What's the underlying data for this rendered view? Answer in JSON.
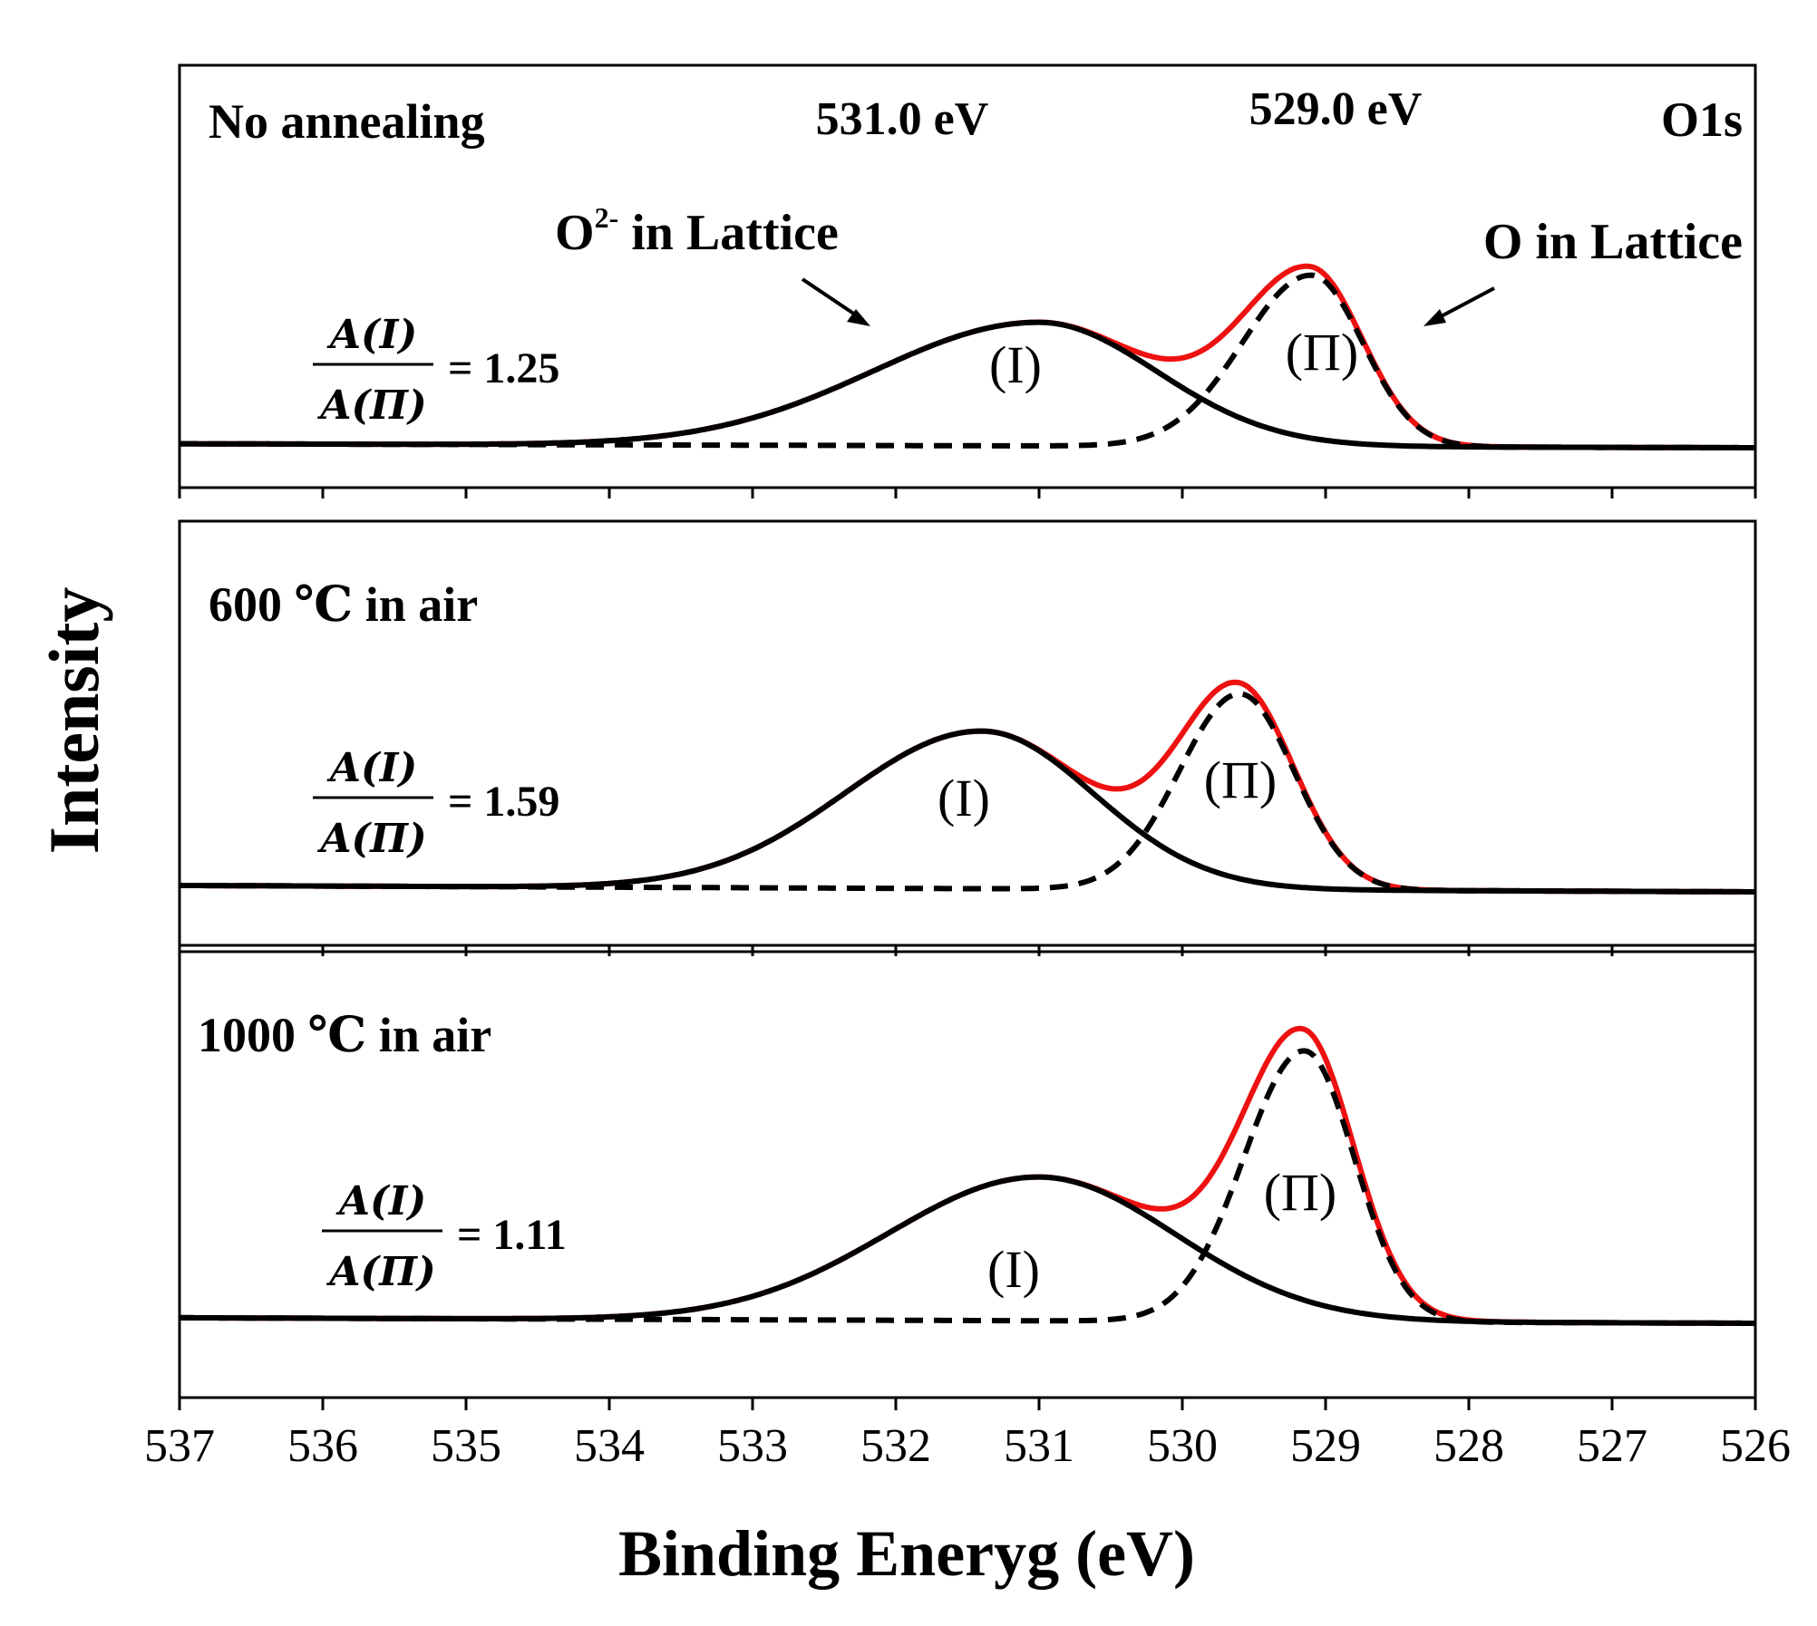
{
  "chart_data": {
    "type": "line",
    "xlabel": "Binding Eneryg (eV)",
    "ylabel": "Intensity",
    "xlim": [
      537,
      526
    ],
    "x_reversed": true,
    "x_ticks": [
      537,
      536,
      535,
      534,
      533,
      532,
      531,
      530,
      529,
      528,
      527,
      526
    ],
    "y_ticks_shown": false,
    "corner_label": "O1s",
    "peak_positions": [
      {
        "label": "531.0 eV",
        "x": 531.0
      },
      {
        "label": "529.0 eV",
        "x": 529.0
      }
    ],
    "arrow_annotations": [
      {
        "sup_base": "O",
        "sup": "2-",
        "rest": " in Lattice",
        "points_to_x": 532.3
      },
      {
        "text": "O in Lattice",
        "points_to_x": 528.3
      }
    ],
    "line_styles": {
      "envelope": {
        "color": "#ee1111",
        "style": "solid"
      },
      "peak_I": {
        "color": "#000000",
        "style": "solid"
      },
      "peak_II": {
        "color": "#000000",
        "style": "dashed"
      }
    },
    "panels": [
      {
        "condition": "No annealing",
        "ratio_numerator": "A(I)",
        "ratio_denominator": "A(Π)",
        "ratio_value": "= 1.25",
        "peak_I_label": "(I)",
        "peak_II_label": "(Π)",
        "peak_I": {
          "center": 531.0,
          "height": 0.62,
          "sigma_left": 1.15,
          "sigma_right": 0.82
        },
        "peak_II": {
          "center": 529.1,
          "height": 0.86,
          "sigma_left": 0.48,
          "sigma_right": 0.36
        },
        "baseline_left": 0.02,
        "baseline_right": 0.0
      },
      {
        "condition": "600 ℃ in air",
        "ratio_numerator": "A(I)",
        "ratio_denominator": "A(Π)",
        "ratio_value": "= 1.59",
        "peak_I_label": "(I)",
        "peak_II_label": "(Π)",
        "peak_I": {
          "center": 531.4,
          "height": 0.74,
          "sigma_left": 0.95,
          "sigma_right": 0.78
        },
        "peak_II": {
          "center": 529.6,
          "height": 0.92,
          "sigma_left": 0.42,
          "sigma_right": 0.38
        },
        "baseline_left": 0.03,
        "baseline_right": 0.0
      },
      {
        "condition": "1000 ℃ in air",
        "ratio_numerator": "A(I)",
        "ratio_denominator": "A(Π)",
        "ratio_value": "= 1.11",
        "peak_I_label": "(I)",
        "peak_II_label": "(Π)",
        "peak_I": {
          "center": 531.0,
          "height": 0.52,
          "sigma_left": 1.05,
          "sigma_right": 0.95
        },
        "peak_II": {
          "center": 529.15,
          "height": 0.98,
          "sigma_left": 0.42,
          "sigma_right": 0.35
        },
        "baseline_left": 0.02,
        "baseline_right": 0.0
      }
    ]
  }
}
